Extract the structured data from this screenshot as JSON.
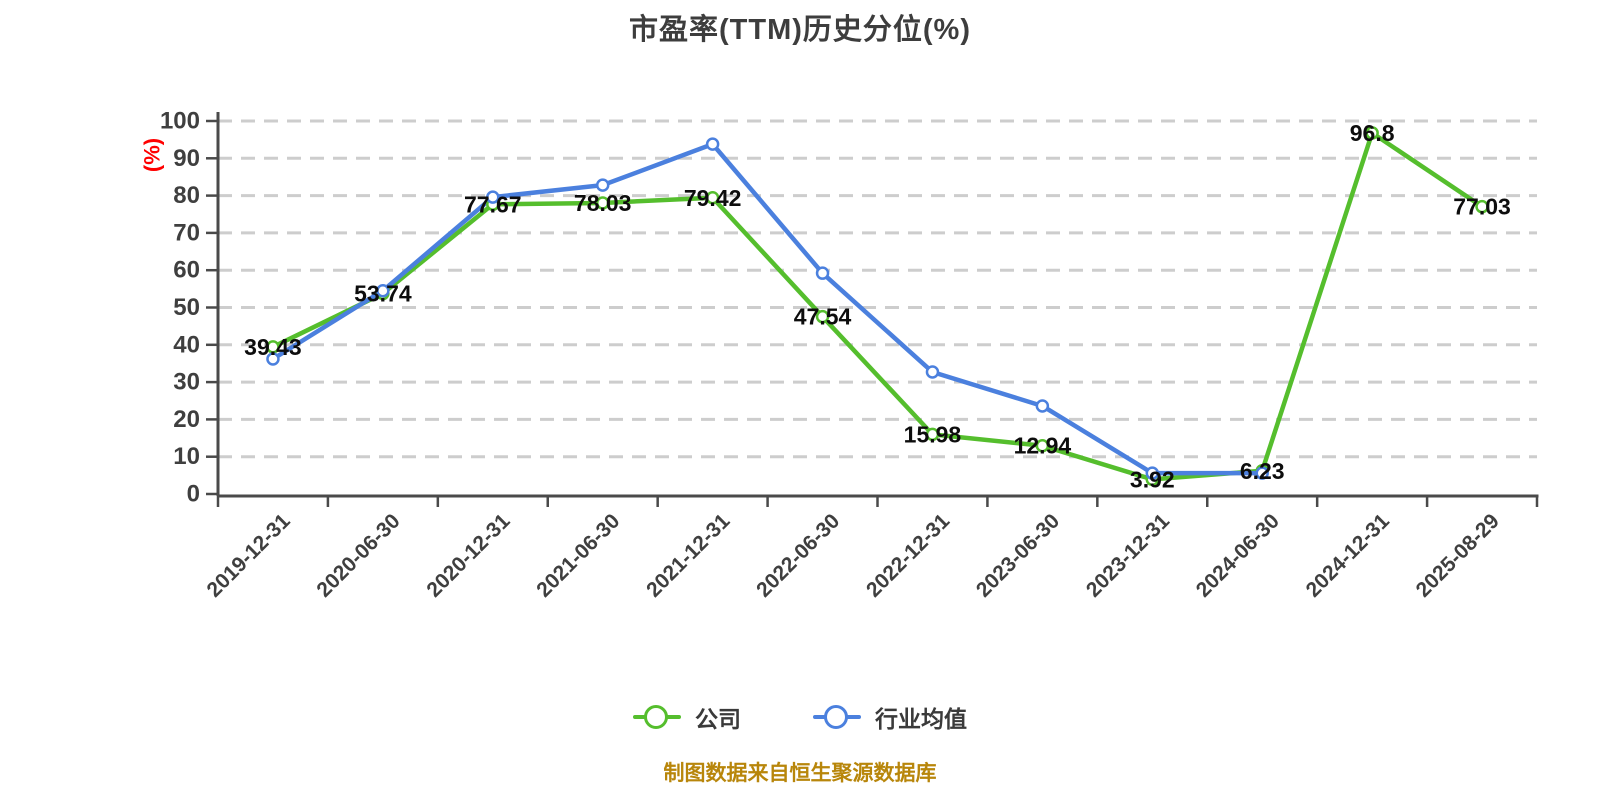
{
  "title": {
    "text": "市盈率(TTM)历史分位(%)"
  },
  "y_axis": {
    "unit_label": "(%)",
    "unit_label_color": "#ff0000",
    "ticks": [
      0,
      10,
      20,
      30,
      40,
      50,
      60,
      70,
      80,
      90,
      100
    ]
  },
  "x_axis": {
    "categories": [
      "2019-12-31",
      "2020-06-30",
      "2020-12-31",
      "2021-06-30",
      "2021-12-31",
      "2022-06-30",
      "2022-12-31",
      "2023-06-30",
      "2023-12-31",
      "2024-06-30",
      "2024-12-31",
      "2025-08-29"
    ]
  },
  "legend": {
    "items": [
      {
        "name": "company",
        "label": "公司",
        "color": "#55be2d"
      },
      {
        "name": "industry-average",
        "label": "行业均值",
        "color": "#4b80de"
      }
    ]
  },
  "footer": {
    "text": "制图数据来自恒生聚源数据库",
    "color": "#b8860b"
  },
  "colors": {
    "company_series": "#55be2d",
    "industry_series": "#4b80de",
    "grid": "#cdcdcd",
    "axis": "#4a4a4a",
    "title": "#3d3d3d",
    "tick_labels": "#3f3f3f",
    "data_labels": "#0d0d0d",
    "y_unit": "#ff0000",
    "footer": "#b8860b"
  },
  "chart_data": {
    "type": "line",
    "title": "市盈率(TTM)历史分位(%)",
    "ylabel": "(%)",
    "ylim": [
      0,
      100
    ],
    "y_ticks": [
      0,
      10,
      20,
      30,
      40,
      50,
      60,
      70,
      80,
      90,
      100
    ],
    "grid": "horizontal-dashed",
    "legend_position": "bottom",
    "categories": [
      "2019-12-31",
      "2020-06-30",
      "2020-12-31",
      "2021-06-30",
      "2021-12-31",
      "2022-06-30",
      "2022-12-31",
      "2023-06-30",
      "2023-12-31",
      "2024-06-30",
      "2024-12-31",
      "2025-08-29"
    ],
    "series": [
      {
        "id": "company",
        "name": "公司",
        "color": "#55be2d",
        "values": [
          39.43,
          53.74,
          77.67,
          78.03,
          79.42,
          47.54,
          15.98,
          12.94,
          3.92,
          6.23,
          96.8,
          77.03
        ],
        "labels": [
          "39.43",
          "53.74",
          "77.67",
          "78.03",
          "79.42",
          "47.54",
          "15.98",
          "12.94",
          "3.92",
          "6.23",
          "96.8",
          "77.03"
        ],
        "show_labels": true
      },
      {
        "id": "industry-average",
        "name": "行业均值",
        "color": "#4b80de",
        "values": [
          36.2,
          54.5,
          79.6,
          82.8,
          93.8,
          59.2,
          32.7,
          23.6,
          5.6,
          5.6
        ],
        "labels": [],
        "show_labels": false
      }
    ]
  }
}
